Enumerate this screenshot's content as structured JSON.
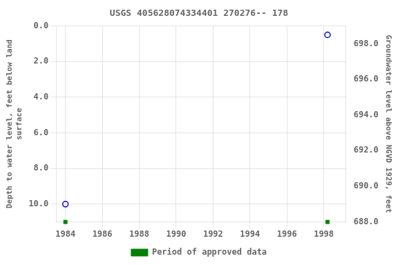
{
  "chart_data": {
    "type": "scatter",
    "title": "USGS 405628074334401 270276-- 178",
    "ylabel": "Depth to water level, feet below land\nsurface",
    "y2label": "Groundwater level above NGVD 1929, feet",
    "xlim": [
      1983.5,
      1999.2
    ],
    "xticks": [
      1984,
      1986,
      1988,
      1990,
      1992,
      1994,
      1996,
      1998
    ],
    "ylim": [
      11.0,
      0.0
    ],
    "yticks": [
      {
        "value": 0,
        "label": "0.0"
      },
      {
        "value": 2,
        "label": "2.0"
      },
      {
        "value": 4,
        "label": "4.0"
      },
      {
        "value": 6,
        "label": "6.0"
      },
      {
        "value": 8,
        "label": "8.0"
      },
      {
        "value": 10,
        "label": "10.0"
      }
    ],
    "y2lim": [
      688.0,
      699.0
    ],
    "y2ticks": [
      {
        "value": 688,
        "label": "688.0"
      },
      {
        "value": 690,
        "label": "690.0"
      },
      {
        "value": 692,
        "label": "692.0"
      },
      {
        "value": 694,
        "label": "694.0"
      },
      {
        "value": 696,
        "label": "696.0"
      },
      {
        "value": 698,
        "label": "698.0"
      }
    ],
    "grid": true,
    "legend": "bottom",
    "series": [
      {
        "x": [
          1984.0,
          1998.2
        ],
        "values": [
          10.0,
          0.5
        ],
        "color": "#0000cc",
        "marker": "open_circle"
      },
      {
        "name": "Period of approved data",
        "x": [
          1984.0,
          1998.2
        ],
        "values": [
          11.0,
          11.0
        ],
        "color": "#008000",
        "marker": "square"
      }
    ]
  }
}
